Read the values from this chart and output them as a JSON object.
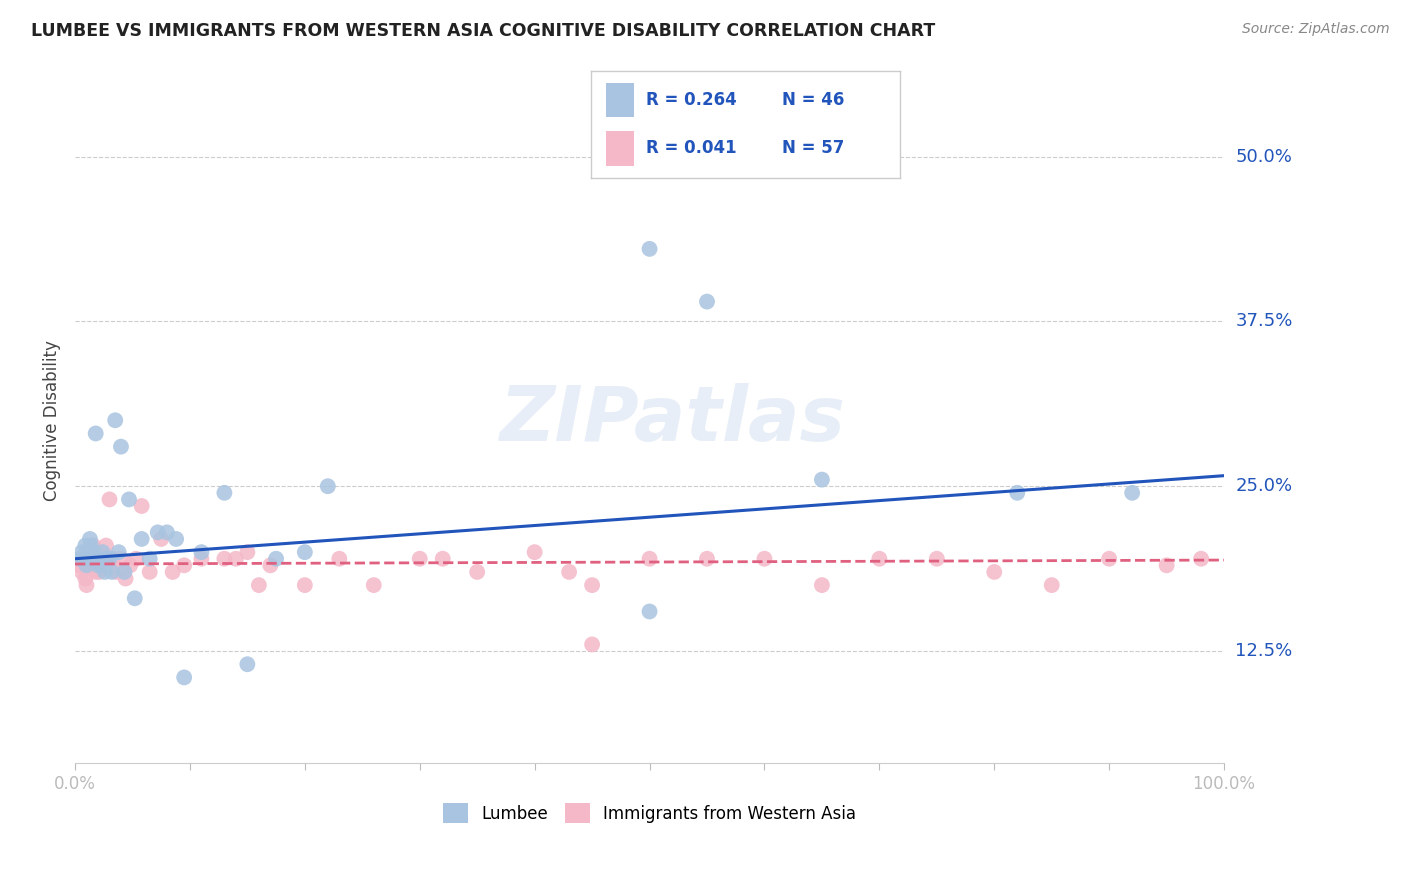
{
  "title": "LUMBEE VS IMMIGRANTS FROM WESTERN ASIA COGNITIVE DISABILITY CORRELATION CHART",
  "source": "Source: ZipAtlas.com",
  "ylabel": "Cognitive Disability",
  "ytick_vals": [
    0.125,
    0.25,
    0.375,
    0.5
  ],
  "ytick_labels": [
    "12.5%",
    "25.0%",
    "37.5%",
    "50.0%"
  ],
  "xlim": [
    0.0,
    1.0
  ],
  "ylim": [
    0.04,
    0.56
  ],
  "legend_r1": "0.264",
  "legend_n1": "46",
  "legend_r2": "0.041",
  "legend_n2": "57",
  "lumbee_color": "#a8c4e0",
  "immigrant_color": "#f4b8c8",
  "line_blue": "#2255bb",
  "line_pink": "#e06080",
  "background_color": "#ffffff",
  "watermark_text": "ZIPatlas",
  "lumbee_x": [
    0.004,
    0.006,
    0.008,
    0.009,
    0.01,
    0.011,
    0.012,
    0.013,
    0.014,
    0.015,
    0.016,
    0.017,
    0.018,
    0.019,
    0.02,
    0.021,
    0.022,
    0.024,
    0.026,
    0.028,
    0.03,
    0.032,
    0.035,
    0.038,
    0.04,
    0.043,
    0.047,
    0.052,
    0.058,
    0.065,
    0.072,
    0.08,
    0.088,
    0.095,
    0.11,
    0.13,
    0.15,
    0.175,
    0.2,
    0.22,
    0.5,
    0.55,
    0.65,
    0.82,
    0.92,
    0.5
  ],
  "lumbee_y": [
    0.195,
    0.2,
    0.195,
    0.205,
    0.19,
    0.2,
    0.195,
    0.21,
    0.205,
    0.195,
    0.2,
    0.195,
    0.29,
    0.195,
    0.19,
    0.195,
    0.19,
    0.2,
    0.185,
    0.195,
    0.195,
    0.185,
    0.3,
    0.2,
    0.28,
    0.185,
    0.24,
    0.165,
    0.21,
    0.195,
    0.215,
    0.215,
    0.21,
    0.105,
    0.2,
    0.245,
    0.115,
    0.195,
    0.2,
    0.25,
    0.43,
    0.39,
    0.255,
    0.245,
    0.245,
    0.155
  ],
  "immigrant_x": [
    0.004,
    0.006,
    0.008,
    0.009,
    0.01,
    0.011,
    0.012,
    0.013,
    0.014,
    0.015,
    0.016,
    0.017,
    0.018,
    0.019,
    0.021,
    0.023,
    0.025,
    0.027,
    0.03,
    0.033,
    0.036,
    0.04,
    0.044,
    0.048,
    0.053,
    0.058,
    0.065,
    0.075,
    0.085,
    0.095,
    0.11,
    0.13,
    0.15,
    0.17,
    0.2,
    0.23,
    0.26,
    0.3,
    0.35,
    0.4,
    0.45,
    0.5,
    0.55,
    0.6,
    0.65,
    0.7,
    0.75,
    0.8,
    0.85,
    0.9,
    0.95,
    0.98,
    0.45,
    0.32,
    0.43,
    0.14,
    0.16
  ],
  "immigrant_y": [
    0.19,
    0.185,
    0.195,
    0.18,
    0.175,
    0.2,
    0.195,
    0.195,
    0.2,
    0.19,
    0.205,
    0.19,
    0.185,
    0.195,
    0.185,
    0.195,
    0.195,
    0.205,
    0.24,
    0.195,
    0.185,
    0.195,
    0.18,
    0.19,
    0.195,
    0.235,
    0.185,
    0.21,
    0.185,
    0.19,
    0.195,
    0.195,
    0.2,
    0.19,
    0.175,
    0.195,
    0.175,
    0.195,
    0.185,
    0.2,
    0.13,
    0.195,
    0.195,
    0.195,
    0.175,
    0.195,
    0.195,
    0.185,
    0.175,
    0.195,
    0.19,
    0.195,
    0.175,
    0.195,
    0.185,
    0.195,
    0.175
  ],
  "blue_line_x0": 0.0,
  "blue_line_y0": 0.195,
  "blue_line_x1": 1.0,
  "blue_line_y1": 0.258,
  "pink_line_x0": 0.0,
  "pink_line_y0": 0.191,
  "pink_line_x1": 1.0,
  "pink_line_y1": 0.194
}
